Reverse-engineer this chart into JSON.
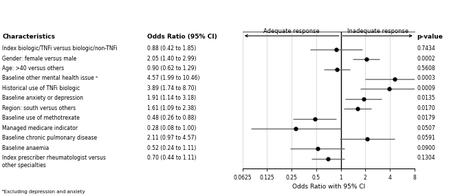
{
  "characteristics": [
    "Index biologic/TNFi versus biologic/non-TNFi",
    "Gender: female versus male",
    "Age: >40 versus others",
    "Baseline other mental health issue ᵃ",
    "Historical use of TNFi biologic",
    "Baseline anxiety or depression",
    "Region: south versus others",
    "Baseline use of methotrexate",
    "Managed medicare indicator",
    "Baseline chronic pulmonary disease",
    "Baseline anaemia",
    "Index prescriber rheumatologist versus\nother specialties"
  ],
  "or_labels": [
    "0.88 (0.42 to 1.85)",
    "2.05 (1.40 to 2.99)",
    "0.90 (0.62 to 1.29)",
    "4.57 (1.99 to 10.46)",
    "3.89 (1.74 to 8.70)",
    "1.91 (1.14 to 3.18)",
    "1.61 (1.09 to 2.38)",
    "0.48 (0.26 to 0.88)",
    "0.28 (0.08 to 1.00)",
    "2.11 (0.97 to 4.57)",
    "0.52 (0.24 to 1.11)",
    "0.70 (0.44 to 1.11)"
  ],
  "or": [
    0.88,
    2.05,
    0.9,
    4.57,
    3.89,
    1.91,
    1.61,
    0.48,
    0.28,
    2.11,
    0.52,
    0.7
  ],
  "ci_low": [
    0.42,
    1.4,
    0.62,
    1.99,
    1.74,
    1.14,
    1.09,
    0.26,
    0.08,
    0.97,
    0.24,
    0.44
  ],
  "ci_high": [
    1.85,
    2.99,
    1.29,
    10.46,
    8.7,
    3.18,
    2.38,
    0.88,
    1.0,
    4.57,
    1.11,
    1.11
  ],
  "pvalues": [
    "0.7434",
    "0.0002",
    "0.5608",
    "0.0003",
    "0.0009",
    "0.0135",
    "0.0170",
    "0.0179",
    "0.0507",
    "0.0591",
    "0.0900",
    "0.1304"
  ],
  "xticks": [
    0.0625,
    0.125,
    0.25,
    0.5,
    1,
    2,
    4,
    8
  ],
  "xtick_labels": [
    "0.0625",
    "0.125",
    "0.25",
    "0.5",
    "1",
    "2",
    "4",
    "8"
  ],
  "xlabel": "Odds Ratio with 95% CI",
  "col1_header": "Characteristics",
  "col2_header": "Odds Ratio (95% CI)",
  "col3_header": "p-value",
  "adequate_label": "Adequate response",
  "inadequate_label": "Inadequate response",
  "footnote": "ᵃExcluding depression and anxiety",
  "xmin": 0.0625,
  "xmax": 8.0,
  "figwidth": 6.85,
  "figheight": 2.85,
  "dpi": 100
}
